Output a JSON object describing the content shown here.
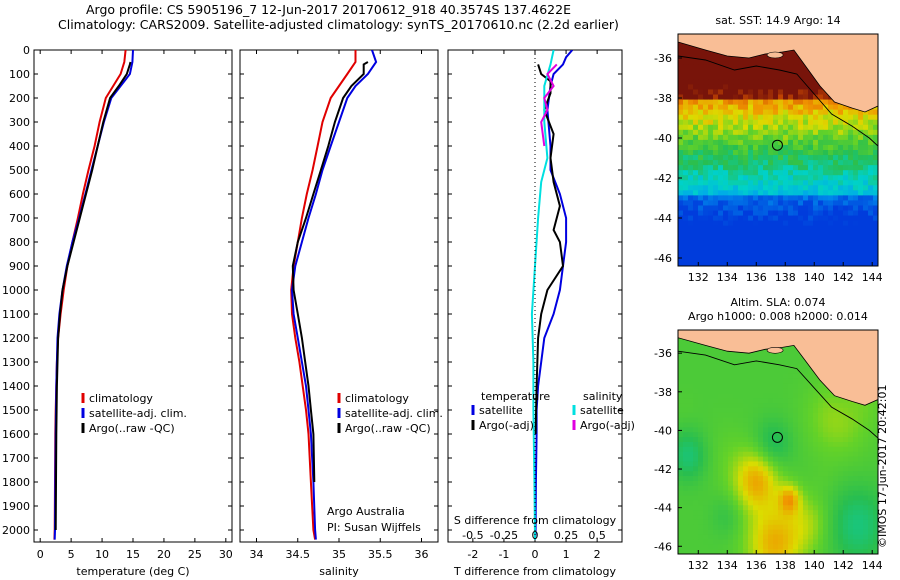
{
  "header": {
    "line1": "Argo profile: CS 5905196_7 12-Jun-2017 20170612_918 40.3574S 137.4622E",
    "line2": "Climatology: CARS2009. Satellite-adjusted climatology: synTS_20170610.nc (2.2d earlier)"
  },
  "colors": {
    "climatology": "#e00000",
    "satellite": "#0000e0",
    "argo": "#000000",
    "sal_satellite": "#00e0e0",
    "sal_argo": "#e000e0"
  },
  "chart_data": [
    {
      "type": "line",
      "xlabel": "temperature (deg C)",
      "xlim": [
        -1,
        31
      ],
      "xticks": [
        0,
        5,
        10,
        15,
        20,
        25,
        30
      ],
      "ylim": [
        0,
        2050
      ],
      "yticks": [
        0,
        100,
        200,
        300,
        400,
        500,
        600,
        700,
        800,
        900,
        1000,
        1100,
        1200,
        1300,
        1400,
        1500,
        1600,
        1700,
        1800,
        1900,
        2000
      ],
      "legend": [
        "climatology",
        "satellite-adj. clim.",
        "Argo(..raw -QC)"
      ],
      "series": [
        {
          "name": "climatology",
          "color": "#e00000",
          "x": [
            13.8,
            13.6,
            13.0,
            11.8,
            10.6,
            9.6,
            8.8,
            7.8,
            6.9,
            6.1,
            5.2,
            4.4,
            3.8,
            3.3,
            2.9,
            2.7,
            2.6,
            2.5,
            2.45,
            2.4,
            2.35,
            2.3
          ],
          "y": [
            0,
            50,
            100,
            150,
            200,
            300,
            400,
            500,
            600,
            700,
            800,
            900,
            1000,
            1100,
            1200,
            1300,
            1400,
            1500,
            1600,
            1800,
            2000,
            2040
          ]
        },
        {
          "name": "satellite-adj. clim.",
          "color": "#0000e0",
          "x": [
            15.0,
            14.9,
            14.5,
            13.0,
            11.5,
            10.3,
            9.3,
            8.3,
            7.3,
            6.3,
            5.2,
            4.3,
            3.6,
            3.1,
            2.8,
            2.7,
            2.6,
            2.55,
            2.5,
            2.45,
            2.4,
            2.35
          ],
          "y": [
            0,
            50,
            100,
            150,
            200,
            300,
            400,
            500,
            600,
            700,
            800,
            900,
            1000,
            1100,
            1200,
            1300,
            1400,
            1500,
            1600,
            1800,
            2000,
            2040
          ]
        },
        {
          "name": "Argo(..raw -QC)",
          "color": "#000000",
          "x": [
            14.6,
            14.5,
            14.0,
            12.7,
            11.3,
            10.2,
            9.3,
            8.4,
            7.4,
            6.4,
            5.4,
            4.4,
            3.6,
            3.2,
            2.9,
            2.8,
            2.7,
            2.65,
            2.6,
            2.55,
            2.5
          ],
          "y": [
            50,
            60,
            100,
            150,
            200,
            300,
            400,
            500,
            600,
            700,
            800,
            900,
            1000,
            1100,
            1200,
            1300,
            1400,
            1500,
            1600,
            1800,
            2000
          ]
        }
      ]
    },
    {
      "type": "line",
      "xlabel": "salinity",
      "xlim": [
        33.8,
        36.2
      ],
      "xticks": [
        34,
        34.5,
        35,
        35.5,
        36
      ],
      "xticklabels": [
        "34",
        "34.5",
        "35",
        "35.5",
        "36"
      ],
      "ylim": [
        0,
        2050
      ],
      "legend": [
        "climatology",
        "satellite-adj. clim.",
        "Argo(..raw -QC)"
      ],
      "annotations": [
        "Argo Australia",
        "PI: Susan Wijffels"
      ],
      "series": [
        {
          "name": "climatology",
          "color": "#e00000",
          "x": [
            35.2,
            35.2,
            35.1,
            35.0,
            34.9,
            34.8,
            34.74,
            34.68,
            34.61,
            34.55,
            34.5,
            34.45,
            34.42,
            34.43,
            34.47,
            34.52,
            34.56,
            34.6,
            34.63,
            34.66,
            34.69,
            34.71
          ],
          "y": [
            0,
            50,
            100,
            150,
            200,
            300,
            400,
            500,
            600,
            700,
            800,
            900,
            1000,
            1100,
            1200,
            1300,
            1400,
            1500,
            1600,
            1800,
            2000,
            2040
          ]
        },
        {
          "name": "satellite-adj. clim.",
          "color": "#0000e0",
          "x": [
            35.4,
            35.45,
            35.35,
            35.2,
            35.1,
            35.0,
            34.9,
            34.8,
            34.72,
            34.63,
            34.55,
            34.47,
            34.43,
            34.45,
            34.5,
            34.55,
            34.6,
            34.63,
            34.66,
            34.69,
            34.71,
            34.72
          ],
          "y": [
            0,
            50,
            100,
            150,
            200,
            300,
            400,
            500,
            600,
            700,
            800,
            900,
            1000,
            1100,
            1200,
            1300,
            1400,
            1500,
            1600,
            1800,
            2000,
            2040
          ]
        },
        {
          "name": "Argo(..raw -QC)",
          "color": "#000000",
          "x": [
            35.35,
            35.3,
            35.3,
            35.15,
            35.05,
            34.95,
            34.87,
            34.78,
            34.69,
            34.6,
            34.5,
            34.44,
            34.45,
            34.5,
            34.55,
            34.59,
            34.63,
            34.66,
            34.69,
            34.7
          ],
          "y": [
            50,
            60,
            100,
            150,
            200,
            300,
            400,
            500,
            600,
            700,
            800,
            900,
            1000,
            1100,
            1200,
            1300,
            1400,
            1500,
            1600,
            1800
          ]
        }
      ]
    },
    {
      "type": "line",
      "xlabel": "T difference from climatology",
      "xlabel2": "S difference from climatology",
      "xlim": [
        -2.8,
        2.8
      ],
      "xticks": [
        -2,
        -1,
        0,
        1,
        2
      ],
      "xticks2": [
        -0.5,
        -0.25,
        0,
        0.25,
        0.5
      ],
      "xticklabels2": [
        "-0.5",
        "-0.25",
        "0",
        "0.25",
        "0.5"
      ],
      "ylim": [
        0,
        2050
      ],
      "legend_titles": [
        "temperature",
        "salinity"
      ],
      "legend": [
        "satellite",
        "Argo(-adj)",
        "satellite",
        "Argo(-adj)"
      ],
      "series": [
        {
          "name": "satellite",
          "group": "temperature",
          "color": "#0000e0",
          "x": [
            1.2,
            1.0,
            0.9,
            0.6,
            0.5,
            0.4,
            0.5,
            0.5,
            0.8,
            1.0,
            1.0,
            0.9,
            0.8,
            0.6,
            0.3,
            0.2,
            0.1,
            0.05,
            0.05,
            0.03,
            0.02,
            0.0
          ],
          "y": [
            0,
            30,
            60,
            100,
            150,
            250,
            400,
            500,
            600,
            700,
            800,
            900,
            1000,
            1100,
            1200,
            1300,
            1400,
            1500,
            1600,
            1800,
            2000,
            2040
          ]
        },
        {
          "name": "Argo(-adj)",
          "group": "temperature",
          "color": "#000000",
          "x": [
            0.1,
            0.2,
            0.5,
            0.5,
            0.3,
            0.6,
            0.5,
            0.6,
            0.8,
            0.6,
            0.8,
            0.9,
            0.4,
            0.2,
            0.1,
            0.05,
            0.02
          ],
          "y": [
            60,
            100,
            130,
            180,
            250,
            350,
            450,
            550,
            650,
            750,
            800,
            900,
            1000,
            1100,
            1200,
            1400,
            1600
          ]
        },
        {
          "name": "satellite",
          "group": "salinity",
          "color": "#00e0e0",
          "x": [
            0.6,
            0.5,
            0.3,
            0.3,
            0.4,
            0.2,
            0.1,
            0.0,
            -0.1,
            -0.05,
            -0.05,
            -0.02,
            0.0
          ],
          "y": [
            0,
            60,
            150,
            300,
            450,
            550,
            700,
            900,
            1100,
            1300,
            1500,
            1800,
            2040
          ]
        },
        {
          "name": "Argo(-adj)",
          "group": "salinity",
          "color": "#e000e0",
          "x": [
            0.7,
            0.4,
            0.6,
            0.3,
            0.4,
            0.2,
            0.3
          ],
          "y": [
            60,
            100,
            150,
            200,
            250,
            300,
            400
          ]
        }
      ]
    },
    {
      "type": "heatmap",
      "title": "sat. SST: 14.9 Argo: 14",
      "xticks": [
        132,
        134,
        136,
        138,
        140,
        142,
        144
      ],
      "yticks": [
        -36,
        -38,
        -40,
        -42,
        -44,
        -46
      ],
      "marker": {
        "lon": 137.46,
        "lat": -40.36
      }
    },
    {
      "type": "heatmap",
      "title": "Altim. SLA: 0.074",
      "title2": "Argo h1000: 0.008 h2000: 0.014",
      "xticks": [
        132,
        134,
        136,
        138,
        140,
        142,
        144
      ],
      "yticks": [
        -36,
        -38,
        -40,
        -42,
        -44,
        -46
      ],
      "marker": {
        "lon": 137.46,
        "lat": -40.36
      }
    }
  ],
  "footer": {
    "stamp": "©IMOS 17-Jun-2017 20:42:01"
  }
}
